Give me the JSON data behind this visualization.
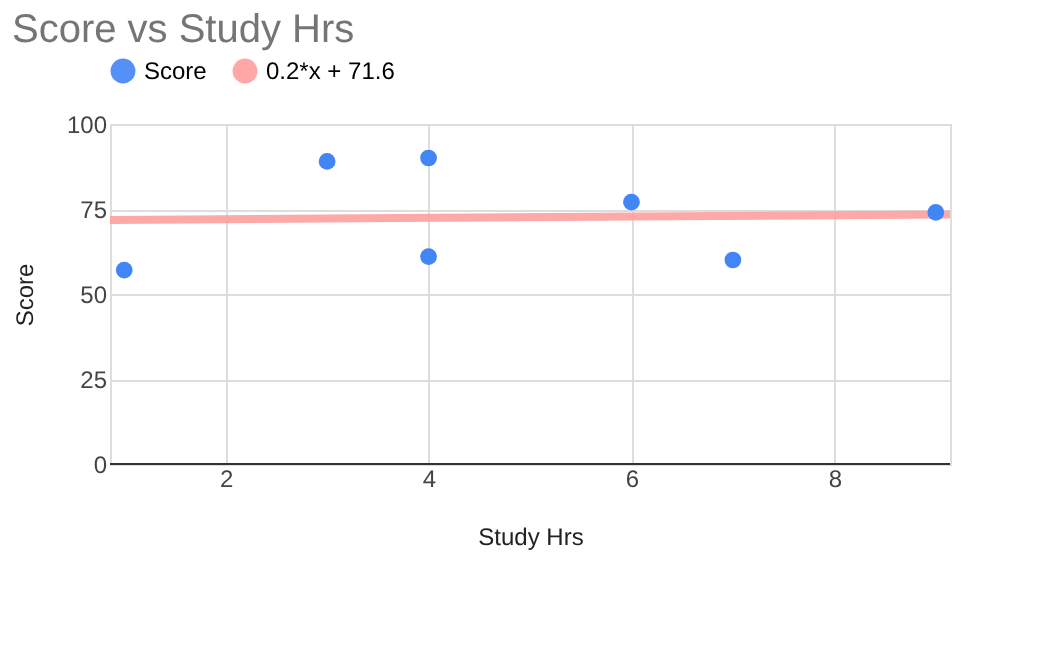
{
  "chart_data": {
    "type": "scatter",
    "title": "Score vs Study Hrs",
    "xlabel": "Study Hrs",
    "ylabel": "Score",
    "series": [
      {
        "name": "Score",
        "marker": "circle",
        "color": "#4285f4",
        "x": [
          1,
          3,
          4,
          4,
          6,
          7,
          9
        ],
        "values": [
          57,
          89,
          90,
          61,
          77,
          60,
          74
        ]
      },
      {
        "name": "0.2*x + 71.6",
        "type": "line",
        "color": "#ff9e9e",
        "x": [
          0.86,
          9.14
        ],
        "values": [
          71.8,
          73.4
        ]
      }
    ],
    "xlim": [
      0.86,
      9.14
    ],
    "xticks": [
      2,
      4,
      6,
      8
    ],
    "ylim": [
      0,
      100
    ],
    "yticks": [
      0,
      25,
      50,
      75,
      100
    ],
    "grid": true,
    "legend": "top"
  }
}
